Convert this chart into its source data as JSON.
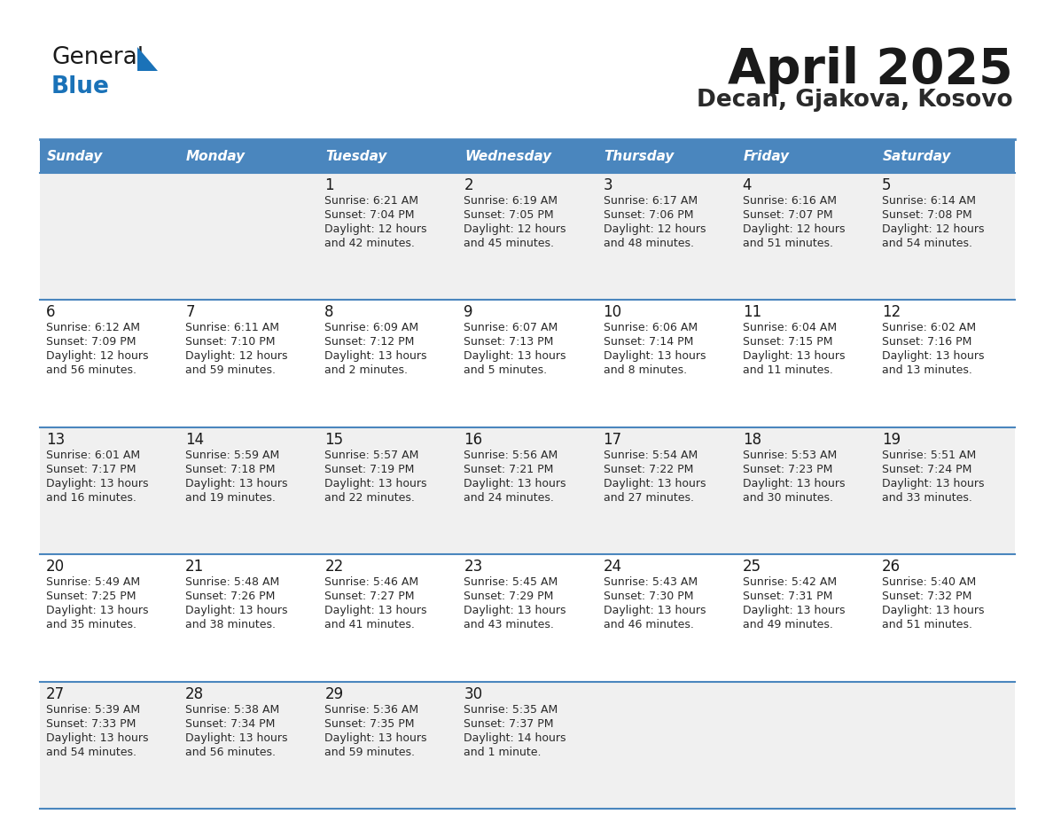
{
  "title": "April 2025",
  "subtitle": "Decan, Gjakova, Kosovo",
  "days_of_week": [
    "Sunday",
    "Monday",
    "Tuesday",
    "Wednesday",
    "Thursday",
    "Friday",
    "Saturday"
  ],
  "header_bg": "#4a86be",
  "header_text": "#ffffff",
  "row_bg_light": "#f0f0f0",
  "row_bg_white": "#ffffff",
  "border_color": "#4a86be",
  "title_color": "#1a1a1a",
  "subtitle_color": "#2a2a2a",
  "day_number_color": "#1a1a1a",
  "cell_text_color": "#2a2a2a",
  "logo_black": "#1a1a1a",
  "logo_blue": "#1a72b8",
  "calendar_data": [
    {
      "day": 1,
      "row": 0,
      "col": 2,
      "sunrise": "6:21 AM",
      "sunset": "7:04 PM",
      "daylight": "12 hours",
      "daylight2": "and 42 minutes."
    },
    {
      "day": 2,
      "row": 0,
      "col": 3,
      "sunrise": "6:19 AM",
      "sunset": "7:05 PM",
      "daylight": "12 hours",
      "daylight2": "and 45 minutes."
    },
    {
      "day": 3,
      "row": 0,
      "col": 4,
      "sunrise": "6:17 AM",
      "sunset": "7:06 PM",
      "daylight": "12 hours",
      "daylight2": "and 48 minutes."
    },
    {
      "day": 4,
      "row": 0,
      "col": 5,
      "sunrise": "6:16 AM",
      "sunset": "7:07 PM",
      "daylight": "12 hours",
      "daylight2": "and 51 minutes."
    },
    {
      "day": 5,
      "row": 0,
      "col": 6,
      "sunrise": "6:14 AM",
      "sunset": "7:08 PM",
      "daylight": "12 hours",
      "daylight2": "and 54 minutes."
    },
    {
      "day": 6,
      "row": 1,
      "col": 0,
      "sunrise": "6:12 AM",
      "sunset": "7:09 PM",
      "daylight": "12 hours",
      "daylight2": "and 56 minutes."
    },
    {
      "day": 7,
      "row": 1,
      "col": 1,
      "sunrise": "6:11 AM",
      "sunset": "7:10 PM",
      "daylight": "12 hours",
      "daylight2": "and 59 minutes."
    },
    {
      "day": 8,
      "row": 1,
      "col": 2,
      "sunrise": "6:09 AM",
      "sunset": "7:12 PM",
      "daylight": "13 hours",
      "daylight2": "and 2 minutes."
    },
    {
      "day": 9,
      "row": 1,
      "col": 3,
      "sunrise": "6:07 AM",
      "sunset": "7:13 PM",
      "daylight": "13 hours",
      "daylight2": "and 5 minutes."
    },
    {
      "day": 10,
      "row": 1,
      "col": 4,
      "sunrise": "6:06 AM",
      "sunset": "7:14 PM",
      "daylight": "13 hours",
      "daylight2": "and 8 minutes."
    },
    {
      "day": 11,
      "row": 1,
      "col": 5,
      "sunrise": "6:04 AM",
      "sunset": "7:15 PM",
      "daylight": "13 hours",
      "daylight2": "and 11 minutes."
    },
    {
      "day": 12,
      "row": 1,
      "col": 6,
      "sunrise": "6:02 AM",
      "sunset": "7:16 PM",
      "daylight": "13 hours",
      "daylight2": "and 13 minutes."
    },
    {
      "day": 13,
      "row": 2,
      "col": 0,
      "sunrise": "6:01 AM",
      "sunset": "7:17 PM",
      "daylight": "13 hours",
      "daylight2": "and 16 minutes."
    },
    {
      "day": 14,
      "row": 2,
      "col": 1,
      "sunrise": "5:59 AM",
      "sunset": "7:18 PM",
      "daylight": "13 hours",
      "daylight2": "and 19 minutes."
    },
    {
      "day": 15,
      "row": 2,
      "col": 2,
      "sunrise": "5:57 AM",
      "sunset": "7:19 PM",
      "daylight": "13 hours",
      "daylight2": "and 22 minutes."
    },
    {
      "day": 16,
      "row": 2,
      "col": 3,
      "sunrise": "5:56 AM",
      "sunset": "7:21 PM",
      "daylight": "13 hours",
      "daylight2": "and 24 minutes."
    },
    {
      "day": 17,
      "row": 2,
      "col": 4,
      "sunrise": "5:54 AM",
      "sunset": "7:22 PM",
      "daylight": "13 hours",
      "daylight2": "and 27 minutes."
    },
    {
      "day": 18,
      "row": 2,
      "col": 5,
      "sunrise": "5:53 AM",
      "sunset": "7:23 PM",
      "daylight": "13 hours",
      "daylight2": "and 30 minutes."
    },
    {
      "day": 19,
      "row": 2,
      "col": 6,
      "sunrise": "5:51 AM",
      "sunset": "7:24 PM",
      "daylight": "13 hours",
      "daylight2": "and 33 minutes."
    },
    {
      "day": 20,
      "row": 3,
      "col": 0,
      "sunrise": "5:49 AM",
      "sunset": "7:25 PM",
      "daylight": "13 hours",
      "daylight2": "and 35 minutes."
    },
    {
      "day": 21,
      "row": 3,
      "col": 1,
      "sunrise": "5:48 AM",
      "sunset": "7:26 PM",
      "daylight": "13 hours",
      "daylight2": "and 38 minutes."
    },
    {
      "day": 22,
      "row": 3,
      "col": 2,
      "sunrise": "5:46 AM",
      "sunset": "7:27 PM",
      "daylight": "13 hours",
      "daylight2": "and 41 minutes."
    },
    {
      "day": 23,
      "row": 3,
      "col": 3,
      "sunrise": "5:45 AM",
      "sunset": "7:29 PM",
      "daylight": "13 hours",
      "daylight2": "and 43 minutes."
    },
    {
      "day": 24,
      "row": 3,
      "col": 4,
      "sunrise": "5:43 AM",
      "sunset": "7:30 PM",
      "daylight": "13 hours",
      "daylight2": "and 46 minutes."
    },
    {
      "day": 25,
      "row": 3,
      "col": 5,
      "sunrise": "5:42 AM",
      "sunset": "7:31 PM",
      "daylight": "13 hours",
      "daylight2": "and 49 minutes."
    },
    {
      "day": 26,
      "row": 3,
      "col": 6,
      "sunrise": "5:40 AM",
      "sunset": "7:32 PM",
      "daylight": "13 hours",
      "daylight2": "and 51 minutes."
    },
    {
      "day": 27,
      "row": 4,
      "col": 0,
      "sunrise": "5:39 AM",
      "sunset": "7:33 PM",
      "daylight": "13 hours",
      "daylight2": "and 54 minutes."
    },
    {
      "day": 28,
      "row": 4,
      "col": 1,
      "sunrise": "5:38 AM",
      "sunset": "7:34 PM",
      "daylight": "13 hours",
      "daylight2": "and 56 minutes."
    },
    {
      "day": 29,
      "row": 4,
      "col": 2,
      "sunrise": "5:36 AM",
      "sunset": "7:35 PM",
      "daylight": "13 hours",
      "daylight2": "and 59 minutes."
    },
    {
      "day": 30,
      "row": 4,
      "col": 3,
      "sunrise": "5:35 AM",
      "sunset": "7:37 PM",
      "daylight": "14 hours",
      "daylight2": "and 1 minute."
    }
  ]
}
